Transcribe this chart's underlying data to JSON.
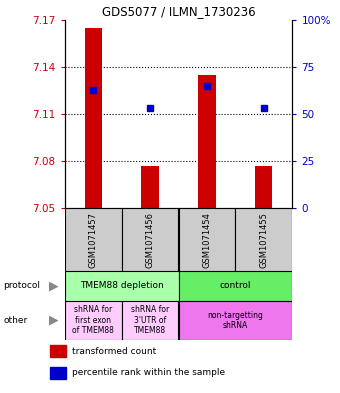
{
  "title": "GDS5077 / ILMN_1730236",
  "samples": [
    "GSM1071457",
    "GSM1071456",
    "GSM1071454",
    "GSM1071455"
  ],
  "bar_bottoms": [
    7.05,
    7.05,
    7.05,
    7.05
  ],
  "bar_tops": [
    7.165,
    7.077,
    7.135,
    7.077
  ],
  "blue_y": [
    7.125,
    7.114,
    7.128,
    7.114
  ],
  "ylim_left": [
    7.05,
    7.17
  ],
  "yticks_left": [
    7.05,
    7.08,
    7.11,
    7.14,
    7.17
  ],
  "yticks_right": [
    0,
    25,
    50,
    75,
    100
  ],
  "ytick_labels_left": [
    "7.05",
    "7.08",
    "7.11",
    "7.14",
    "7.17"
  ],
  "ytick_labels_right": [
    "0",
    "25",
    "50",
    "75",
    "100%"
  ],
  "bar_color": "#CC0000",
  "blue_color": "#0000CC",
  "protocol_labels": [
    "TMEM88 depletion",
    "control"
  ],
  "protocol_colors": [
    "#AAFFAA",
    "#66EE66"
  ],
  "other_labels": [
    "shRNA for\nfirst exon\nof TMEM88",
    "shRNA for\n3'UTR of\nTMEM88",
    "non-targetting\nshRNA"
  ],
  "other_colors": [
    "#FFCCFF",
    "#FFCCFF",
    "#EE77EE"
  ],
  "legend_red": "transformed count",
  "legend_blue": "percentile rank within the sample",
  "bg_color": "#FFFFFF",
  "plot_bg": "#FFFFFF",
  "sample_bg": "#CCCCCC"
}
